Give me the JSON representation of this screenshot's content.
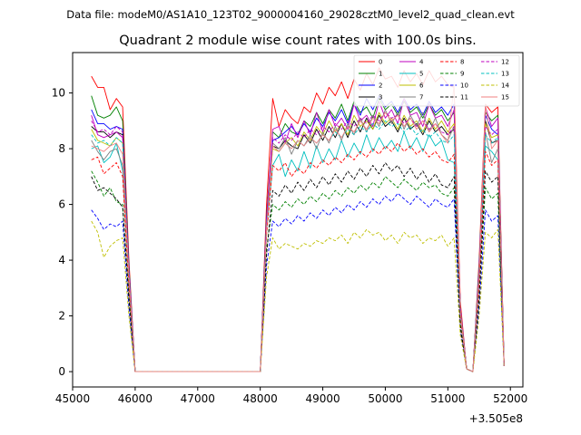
{
  "header": {
    "data_file": "Data file: modeM0/AS1A10_123T02_9000004160_29028cztM0_level2_quad_clean.evt"
  },
  "chart_data": {
    "type": "line",
    "title": "Quadrant 2 module wise count rates with 100.0s bins.",
    "xlabel": "",
    "ylabel": "",
    "x_offset_label": "+3.505e8",
    "xlim": [
      45000,
      52200
    ],
    "ylim": [
      -0.55,
      11.45
    ],
    "x_ticks": [
      45000,
      46000,
      47000,
      48000,
      49000,
      50000,
      51000,
      52000
    ],
    "x_tick_labels": [
      "45000",
      "46000",
      "47000",
      "48000",
      "49000",
      "50000",
      "51000",
      "52000"
    ],
    "y_ticks": [
      0,
      2,
      4,
      6,
      8,
      10
    ],
    "y_tick_labels": [
      "0",
      "2",
      "4",
      "6",
      "8",
      "10"
    ],
    "grid": false,
    "legend_position": "top-right",
    "legend_columns": 4,
    "x": [
      45300,
      45400,
      45500,
      45600,
      45700,
      45800,
      45900,
      46000,
      46100,
      46200,
      46300,
      46400,
      46500,
      46600,
      46700,
      46800,
      46900,
      47000,
      47100,
      47200,
      47300,
      47400,
      47500,
      47600,
      47700,
      47800,
      47900,
      48000,
      48100,
      48200,
      48300,
      48400,
      48500,
      48600,
      48700,
      48800,
      48900,
      49000,
      49100,
      49200,
      49300,
      49400,
      49500,
      49600,
      49700,
      49800,
      49900,
      50000,
      50100,
      50200,
      50300,
      50400,
      50500,
      50600,
      50700,
      50800,
      50900,
      51000,
      51100,
      51200,
      51300,
      51400,
      51500,
      51600,
      51700,
      51800,
      51900
    ],
    "series": [
      {
        "name": "0",
        "color": "#ff0000",
        "dash": "solid",
        "values": [
          10.6,
          10.2,
          10.2,
          9.4,
          9.8,
          9.5,
          4.0,
          0,
          0,
          0,
          0,
          0,
          0,
          0,
          0,
          0,
          0,
          0,
          0,
          0,
          0,
          0,
          0,
          0,
          0,
          0,
          0,
          0,
          6.0,
          9.8,
          8.8,
          9.4,
          9.1,
          8.9,
          9.5,
          9.3,
          10.0,
          9.6,
          10.2,
          9.9,
          10.4,
          9.8,
          10.5,
          10.1,
          10.7,
          10.3,
          10.9,
          10.5,
          10.6,
          10.2,
          10.8,
          10.4,
          10.7,
          10.3,
          10.8,
          10.4,
          10.6,
          10.3,
          10.2,
          2.5,
          0.1,
          0,
          4.0,
          9.6,
          9.3,
          9.5,
          0.2
        ]
      },
      {
        "name": "1",
        "color": "#008000",
        "dash": "solid",
        "values": [
          9.9,
          9.2,
          9.1,
          9.2,
          9.5,
          9.0,
          3.8,
          0,
          0,
          0,
          0,
          0,
          0,
          0,
          0,
          0,
          0,
          0,
          0,
          0,
          0,
          0,
          0,
          0,
          0,
          0,
          0,
          0,
          5.6,
          8.6,
          8.4,
          8.9,
          8.6,
          8.5,
          9.0,
          8.8,
          9.3,
          8.9,
          9.4,
          9.1,
          9.6,
          9.0,
          9.7,
          9.3,
          9.5,
          9.1,
          9.8,
          9.4,
          9.6,
          9.2,
          9.7,
          9.3,
          9.5,
          9.1,
          9.6,
          9.2,
          9.4,
          9.0,
          9.3,
          2.3,
          0.1,
          0,
          3.8,
          9.3,
          9.0,
          9.2,
          0.2
        ]
      },
      {
        "name": "2",
        "color": "#0000ff",
        "dash": "solid",
        "values": [
          9.4,
          8.9,
          8.9,
          8.7,
          8.8,
          8.7,
          3.7,
          0,
          0,
          0,
          0,
          0,
          0,
          0,
          0,
          0,
          0,
          0,
          0,
          0,
          0,
          0,
          0,
          0,
          0,
          0,
          0,
          0,
          5.5,
          8.3,
          8.4,
          8.6,
          8.8,
          8.5,
          8.9,
          8.6,
          9.1,
          8.8,
          9.3,
          9.0,
          9.4,
          8.9,
          9.6,
          9.2,
          9.8,
          9.4,
          9.9,
          9.5,
          9.7,
          9.3,
          9.8,
          9.4,
          9.6,
          9.2,
          9.7,
          9.3,
          9.5,
          9.2,
          9.6,
          2.3,
          0.1,
          0,
          3.7,
          9.2,
          8.7,
          8.5,
          0.2
        ]
      },
      {
        "name": "3",
        "color": "#000000",
        "dash": "solid",
        "values": [
          8.8,
          8.6,
          8.6,
          8.4,
          8.6,
          8.5,
          3.5,
          0,
          0,
          0,
          0,
          0,
          0,
          0,
          0,
          0,
          0,
          0,
          0,
          0,
          0,
          0,
          0,
          0,
          0,
          0,
          0,
          0,
          5.3,
          8.1,
          8.0,
          8.3,
          8.1,
          8.0,
          8.5,
          8.2,
          8.7,
          8.3,
          8.8,
          8.4,
          8.9,
          8.4,
          9.0,
          8.6,
          9.1,
          8.7,
          9.2,
          8.8,
          9.0,
          8.6,
          9.1,
          8.7,
          8.9,
          8.5,
          9.0,
          8.6,
          8.8,
          8.5,
          8.7,
          2.2,
          0.1,
          0,
          3.5,
          9.0,
          8.2,
          8.3,
          0.2
        ]
      },
      {
        "name": "4",
        "color": "#bf00bf",
        "dash": "solid",
        "values": [
          9.2,
          8.5,
          8.4,
          8.5,
          8.6,
          8.4,
          3.6,
          0,
          0,
          0,
          0,
          0,
          0,
          0,
          0,
          0,
          0,
          0,
          0,
          0,
          0,
          0,
          0,
          0,
          0,
          0,
          0,
          0,
          5.4,
          8.7,
          8.8,
          8.2,
          8.9,
          8.4,
          9.0,
          8.5,
          9.3,
          8.6,
          9.4,
          8.8,
          9.1,
          8.7,
          9.6,
          9.0,
          9.2,
          8.8,
          9.7,
          9.1,
          9.4,
          8.9,
          9.8,
          9.2,
          9.3,
          8.8,
          9.6,
          9.1,
          9.2,
          8.8,
          9.4,
          2.3,
          0.1,
          0,
          3.6,
          9.5,
          8.8,
          9.1,
          0.2
        ]
      },
      {
        "name": "5",
        "color": "#00bfbf",
        "dash": "solid",
        "values": [
          8.0,
          8.1,
          7.5,
          7.7,
          8.2,
          7.2,
          3.2,
          0,
          0,
          0,
          0,
          0,
          0,
          0,
          0,
          0,
          0,
          0,
          0,
          0,
          0,
          0,
          0,
          0,
          0,
          0,
          0,
          0,
          5.0,
          7.4,
          7.8,
          7.0,
          7.6,
          7.2,
          7.9,
          7.3,
          8.1,
          7.5,
          8.0,
          7.6,
          8.3,
          7.7,
          8.2,
          7.8,
          8.5,
          7.9,
          8.4,
          8.0,
          8.3,
          7.9,
          8.6,
          8.0,
          8.4,
          7.9,
          8.5,
          8.1,
          8.3,
          7.6,
          7.5,
          2.0,
          0.1,
          0,
          3.2,
          8.1,
          7.9,
          7.6,
          0.2
        ]
      },
      {
        "name": "6",
        "color": "#bfbf00",
        "dash": "solid",
        "values": [
          8.7,
          8.3,
          8.2,
          8.1,
          8.4,
          8.2,
          3.4,
          0,
          0,
          0,
          0,
          0,
          0,
          0,
          0,
          0,
          0,
          0,
          0,
          0,
          0,
          0,
          0,
          0,
          0,
          0,
          0,
          0,
          5.2,
          8.0,
          7.9,
          8.2,
          8.4,
          8.1,
          8.6,
          8.3,
          8.8,
          8.5,
          9.0,
          8.6,
          8.9,
          8.5,
          9.2,
          8.8,
          9.0,
          8.7,
          9.3,
          8.9,
          9.1,
          8.7,
          9.2,
          8.8,
          9.0,
          8.6,
          9.1,
          8.7,
          9.0,
          8.6,
          8.9,
          2.2,
          0.1,
          0,
          3.4,
          8.9,
          8.4,
          8.5,
          0.2
        ]
      },
      {
        "name": "7",
        "color": "#808080",
        "dash": "solid",
        "values": [
          8.3,
          7.9,
          7.6,
          7.9,
          8.0,
          7.4,
          3.3,
          0,
          0,
          0,
          0,
          0,
          0,
          0,
          0,
          0,
          0,
          0,
          0,
          0,
          0,
          0,
          0,
          0,
          0,
          0,
          0,
          0,
          5.1,
          8.2,
          8.0,
          8.4,
          7.8,
          8.3,
          8.1,
          8.5,
          8.0,
          8.6,
          8.2,
          8.8,
          8.3,
          8.9,
          8.5,
          9.1,
          8.6,
          9.2,
          8.8,
          9.4,
          8.9,
          9.3,
          8.7,
          9.2,
          8.8,
          9.3,
          8.6,
          9.1,
          8.5,
          8.3,
          8.8,
          2.1,
          0.1,
          0,
          3.3,
          8.6,
          7.5,
          8.0,
          0.2
        ]
      },
      {
        "name": "8",
        "color": "#ff0000",
        "dash": "dashed",
        "values": [
          7.6,
          7.7,
          7.1,
          7.3,
          7.5,
          7.0,
          3.0,
          0,
          0,
          0,
          0,
          0,
          0,
          0,
          0,
          0,
          0,
          0,
          0,
          0,
          0,
          0,
          0,
          0,
          0,
          0,
          0,
          0,
          4.9,
          7.4,
          7.2,
          7.5,
          7.0,
          7.3,
          7.1,
          7.5,
          7.3,
          7.6,
          7.4,
          7.7,
          7.5,
          7.8,
          7.6,
          7.9,
          7.7,
          8.0,
          7.8,
          8.1,
          7.9,
          8.2,
          7.9,
          8.1,
          7.8,
          8.0,
          7.7,
          7.9,
          7.6,
          7.5,
          7.8,
          1.9,
          0.1,
          0,
          3.0,
          7.9,
          7.4,
          7.6,
          0.2
        ]
      },
      {
        "name": "9",
        "color": "#008000",
        "dash": "dashed",
        "values": [
          7.2,
          6.8,
          6.3,
          6.6,
          6.1,
          6.0,
          2.7,
          0,
          0,
          0,
          0,
          0,
          0,
          0,
          0,
          0,
          0,
          0,
          0,
          0,
          0,
          0,
          0,
          0,
          0,
          0,
          0,
          0,
          4.4,
          6.0,
          5.8,
          6.1,
          5.9,
          6.2,
          6.0,
          6.3,
          6.1,
          6.4,
          6.2,
          6.5,
          6.3,
          6.6,
          6.4,
          6.7,
          6.5,
          6.8,
          6.6,
          7.0,
          6.8,
          6.6,
          6.9,
          6.7,
          6.5,
          6.8,
          6.6,
          6.7,
          6.4,
          6.3,
          6.6,
          1.7,
          0.1,
          0,
          2.7,
          6.6,
          6.2,
          6.4,
          0.2
        ]
      },
      {
        "name": "10",
        "color": "#0000ff",
        "dash": "dashed",
        "values": [
          5.8,
          5.5,
          5.1,
          5.3,
          5.2,
          5.4,
          2.3,
          0,
          0,
          0,
          0,
          0,
          0,
          0,
          0,
          0,
          0,
          0,
          0,
          0,
          0,
          0,
          0,
          0,
          0,
          0,
          0,
          0,
          3.8,
          5.4,
          5.2,
          5.5,
          5.3,
          5.6,
          5.4,
          5.7,
          5.5,
          5.8,
          5.6,
          5.9,
          5.7,
          6.0,
          5.8,
          6.1,
          5.9,
          6.2,
          6.0,
          6.3,
          6.1,
          6.4,
          6.2,
          6.0,
          6.3,
          6.1,
          5.9,
          6.2,
          6.0,
          5.9,
          6.2,
          1.5,
          0.1,
          0,
          2.3,
          5.8,
          5.4,
          5.6,
          0.2
        ]
      },
      {
        "name": "11",
        "color": "#000000",
        "dash": "dashed",
        "values": [
          7.0,
          6.5,
          6.6,
          6.4,
          6.2,
          5.9,
          2.6,
          0,
          0,
          0,
          0,
          0,
          0,
          0,
          0,
          0,
          0,
          0,
          0,
          0,
          0,
          0,
          0,
          0,
          0,
          0,
          0,
          0,
          4.2,
          6.5,
          6.3,
          6.7,
          6.4,
          6.8,
          6.5,
          6.9,
          6.6,
          7.0,
          6.7,
          7.1,
          6.8,
          7.2,
          6.9,
          7.3,
          7.0,
          7.4,
          7.1,
          7.5,
          7.2,
          7.4,
          7.0,
          7.3,
          6.9,
          7.2,
          6.8,
          7.1,
          6.7,
          6.6,
          7.0,
          1.6,
          0.1,
          0,
          2.6,
          7.2,
          6.8,
          7.0,
          0.2
        ]
      },
      {
        "name": "12",
        "color": "#bf00bf",
        "dash": "dashed",
        "values": [
          9.0,
          8.6,
          8.7,
          8.5,
          8.8,
          8.6,
          3.6,
          0,
          0,
          0,
          0,
          0,
          0,
          0,
          0,
          0,
          0,
          0,
          0,
          0,
          0,
          0,
          0,
          0,
          0,
          0,
          0,
          0,
          5.4,
          8.4,
          8.2,
          8.5,
          8.3,
          8.6,
          8.4,
          8.7,
          8.5,
          8.8,
          8.6,
          8.9,
          8.7,
          9.0,
          8.8,
          9.1,
          8.9,
          9.2,
          9.0,
          9.3,
          9.1,
          9.2,
          8.9,
          9.1,
          8.8,
          9.0,
          8.7,
          8.9,
          8.6,
          8.5,
          8.8,
          2.2,
          0.1,
          0,
          3.6,
          8.8,
          8.5,
          8.7,
          0.2
        ]
      },
      {
        "name": "13",
        "color": "#00bfbf",
        "dash": "dashed",
        "values": [
          8.5,
          8.2,
          8.3,
          8.1,
          8.4,
          8.2,
          3.5,
          0,
          0,
          0,
          0,
          0,
          0,
          0,
          0,
          0,
          0,
          0,
          0,
          0,
          0,
          0,
          0,
          0,
          0,
          0,
          0,
          0,
          5.2,
          8.1,
          7.9,
          8.2,
          8.0,
          8.3,
          8.1,
          8.4,
          8.2,
          8.5,
          8.3,
          8.6,
          8.4,
          8.7,
          8.5,
          8.8,
          8.6,
          8.9,
          8.7,
          9.0,
          8.8,
          8.9,
          8.6,
          8.8,
          8.5,
          8.7,
          8.4,
          8.6,
          8.3,
          8.2,
          8.5,
          2.1,
          0.1,
          0,
          3.5,
          8.5,
          8.2,
          8.4,
          0.2
        ]
      },
      {
        "name": "14",
        "color": "#bfbf00",
        "dash": "dashed",
        "values": [
          5.4,
          5.0,
          4.1,
          4.5,
          4.7,
          4.8,
          2.0,
          0,
          0,
          0,
          0,
          0,
          0,
          0,
          0,
          0,
          0,
          0,
          0,
          0,
          0,
          0,
          0,
          0,
          0,
          0,
          0,
          0,
          3.4,
          4.8,
          4.4,
          4.6,
          4.5,
          4.4,
          4.6,
          4.5,
          4.7,
          4.6,
          4.8,
          4.7,
          4.9,
          4.6,
          5.0,
          4.8,
          5.1,
          4.9,
          5.0,
          4.7,
          4.9,
          4.6,
          5.0,
          4.8,
          4.9,
          4.6,
          4.8,
          4.7,
          4.9,
          4.5,
          4.8,
          1.3,
          0.1,
          0,
          2.0,
          5.0,
          4.8,
          5.1,
          0.2
        ]
      },
      {
        "name": "15",
        "color": "#f08080",
        "dash": "solid",
        "values": [
          8.1,
          8.0,
          7.9,
          8.1,
          8.2,
          7.8,
          3.4,
          0,
          0,
          0,
          0,
          0,
          0,
          0,
          0,
          0,
          0,
          0,
          0,
          0,
          0,
          0,
          0,
          0,
          0,
          0,
          0,
          0,
          5.1,
          8.1,
          7.9,
          8.2,
          8.0,
          8.3,
          8.1,
          8.4,
          8.2,
          8.5,
          8.3,
          8.7,
          8.4,
          8.8,
          8.6,
          9.0,
          8.7,
          9.1,
          8.9,
          9.3,
          9.0,
          9.2,
          8.8,
          9.1,
          8.7,
          9.0,
          8.6,
          8.9,
          8.5,
          8.2,
          10.3,
          2.1,
          0.1,
          0,
          3.4,
          9.6,
          8.0,
          8.3,
          0.2
        ]
      }
    ]
  }
}
